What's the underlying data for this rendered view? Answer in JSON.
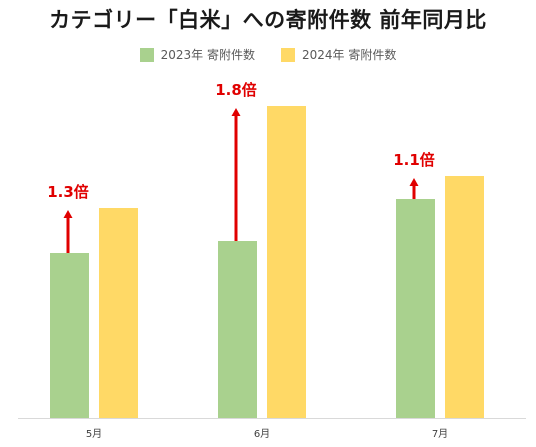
{
  "chart_data": {
    "type": "bar",
    "title": "カテゴリー「白米」への寄附件数 前年同月比",
    "categories": [
      "5月",
      "6月",
      "7月"
    ],
    "series": [
      {
        "name": "2023年 寄附件数",
        "values": [
          165,
          177,
          219
        ]
      },
      {
        "name": "2024年 寄附件数",
        "values": [
          210,
          312,
          242
        ]
      }
    ],
    "annotations": [
      "1.3倍",
      "1.8倍",
      "1.1倍"
    ],
    "ylim": [
      0,
      320
    ],
    "grid": false,
    "legend_position": "top-center"
  },
  "colors": {
    "series_2023": "#a9d18e",
    "series_2024": "#ffd966",
    "arrow": "#e00000",
    "annotation_text": "#e00000",
    "axis": "#d9d9d9",
    "tick_text": "#404040"
  }
}
